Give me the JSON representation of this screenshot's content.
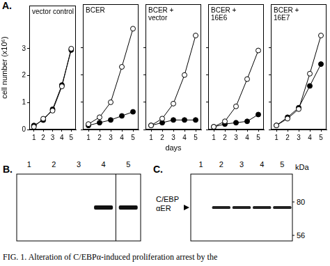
{
  "chart_data": [
    {
      "type": "line",
      "title": "vector control",
      "ylabel": "cell number (x10⁶)",
      "x": [
        1,
        2,
        3,
        4,
        5
      ],
      "xlim": [
        0.5,
        5.5
      ],
      "xticks": [
        1,
        2,
        3,
        4,
        5
      ],
      "ylim": [
        0,
        4.6
      ],
      "yticks": [
        0,
        1,
        2,
        3
      ],
      "grid": false,
      "series": [
        {
          "color": "#000000",
          "marker": "open_circle",
          "values": [
            0.1,
            0.4,
            0.7,
            1.6,
            3.0
          ]
        },
        {
          "color": "#000000",
          "marker": "filled_circle",
          "values": [
            0.15,
            0.35,
            0.75,
            1.65,
            2.95
          ]
        }
      ]
    },
    {
      "type": "line",
      "title": "BCER",
      "tick_labels": "x",
      "x": [
        1,
        2,
        3,
        4,
        5
      ],
      "xlim": [
        0.5,
        5.5
      ],
      "xticks": [
        1,
        2,
        3,
        4,
        5
      ],
      "ylim": [
        0,
        4.6
      ],
      "yticks": [
        0,
        1,
        2,
        3
      ],
      "grid": false,
      "series": [
        {
          "color": "#000000",
          "marker": "open_circle",
          "values": [
            0.2,
            0.45,
            1.0,
            2.3,
            3.7
          ]
        },
        {
          "color": "#000000",
          "marker": "filled_circle",
          "values": [
            0.15,
            0.25,
            0.35,
            0.5,
            0.65
          ]
        }
      ]
    },
    {
      "type": "line",
      "title": "BCER + vector",
      "xlabel": "days",
      "tick_labels": "x",
      "x": [
        1,
        2,
        3,
        4,
        5
      ],
      "xlim": [
        0.5,
        5.5
      ],
      "xticks": [
        1,
        2,
        3,
        4,
        5
      ],
      "ylim": [
        0,
        4.6
      ],
      "yticks": [
        0,
        1,
        2,
        3
      ],
      "grid": false,
      "series": [
        {
          "color": "#000000",
          "marker": "open_circle",
          "values": [
            0.15,
            0.4,
            0.95,
            2.0,
            3.45
          ]
        },
        {
          "color": "#000000",
          "marker": "filled_circle",
          "values": [
            0.15,
            0.25,
            0.35,
            0.35,
            0.35
          ]
        }
      ]
    },
    {
      "type": "line",
      "title": "BCER + 16E6",
      "tick_labels": "x",
      "x": [
        1,
        2,
        3,
        4,
        5
      ],
      "xlim": [
        0.5,
        5.5
      ],
      "xticks": [
        1,
        2,
        3,
        4,
        5
      ],
      "ylim": [
        0,
        4.6
      ],
      "yticks": [
        0,
        1,
        2,
        3
      ],
      "grid": false,
      "series": [
        {
          "color": "#000000",
          "marker": "open_circle",
          "values": [
            0.1,
            0.3,
            0.85,
            1.85,
            2.9
          ]
        },
        {
          "color": "#000000",
          "marker": "filled_circle",
          "values": [
            0.1,
            0.2,
            0.25,
            0.3,
            0.55
          ]
        }
      ]
    },
    {
      "type": "line",
      "title": "BCER + 16E7",
      "tick_labels": "x",
      "x": [
        1,
        2,
        3,
        4,
        5
      ],
      "xlim": [
        0.5,
        5.5
      ],
      "xticks": [
        1,
        2,
        3,
        4,
        5
      ],
      "ylim": [
        0,
        4.6
      ],
      "yticks": [
        0,
        1,
        2,
        3
      ],
      "grid": false,
      "series": [
        {
          "color": "#000000",
          "marker": "open_circle",
          "values": [
            0.15,
            0.4,
            0.75,
            2.05,
            3.45
          ]
        },
        {
          "color": "#000000",
          "marker": "filled_circle",
          "values": [
            0.15,
            0.45,
            0.8,
            1.6,
            2.4
          ]
        }
      ]
    }
  ],
  "panel_a": {
    "label": "A."
  },
  "blot_b": {
    "label": "B.",
    "lanes": [
      "1",
      "2",
      "3",
      "4",
      "5"
    ],
    "bands": [
      false,
      false,
      false,
      true,
      true
    ]
  },
  "blot_c": {
    "label": "C.",
    "lanes": [
      "1",
      "2",
      "3",
      "4",
      "5"
    ],
    "bands": [
      false,
      true,
      true,
      true,
      true
    ],
    "band_label": [
      "C/EBP",
      "αER"
    ],
    "band_kda": 76,
    "markers": [
      80,
      56
    ],
    "marker_unit": "kDa"
  },
  "caption": "FIG. 1. Alteration of C/EBPα-induced proliferation arrest by the"
}
